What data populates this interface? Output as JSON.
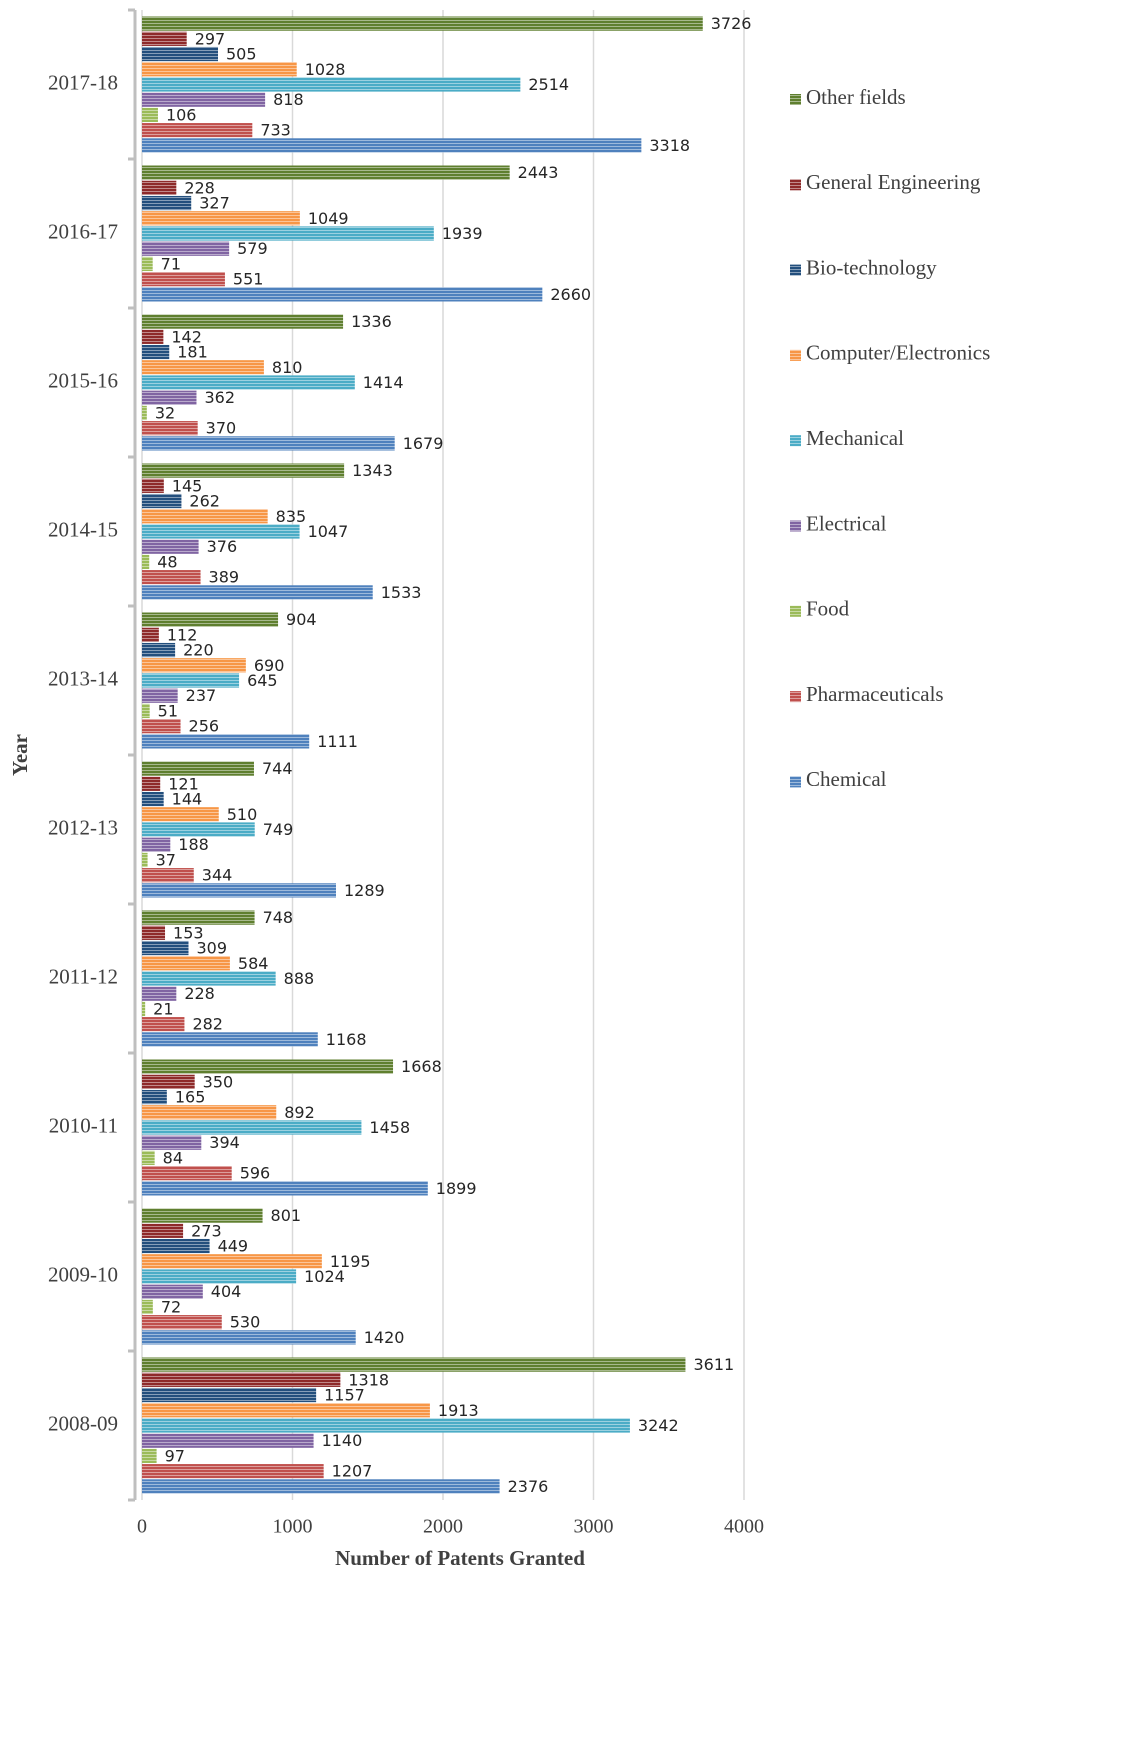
{
  "chart_data": {
    "type": "bar",
    "orientation": "horizontal",
    "x_label": "Number of Patents Granted",
    "y_label": "Year",
    "categories": [
      "2008-09",
      "2009-10",
      "2010-11",
      "2011-12",
      "2012-13",
      "2013-14",
      "2014-15",
      "2015-16",
      "2016-17",
      "2017-18"
    ],
    "series": [
      {
        "name": "Other fields",
        "color": "#5f7f2f",
        "values": [
          3611,
          801,
          1668,
          748,
          744,
          904,
          1343,
          1336,
          2443,
          3726
        ]
      },
      {
        "name": "General Engineering",
        "color": "#8e2a2a",
        "values": [
          1318,
          273,
          350,
          153,
          121,
          112,
          145,
          142,
          228,
          297
        ]
      },
      {
        "name": "Bio-technology",
        "color": "#234f7d",
        "values": [
          1157,
          449,
          165,
          309,
          144,
          220,
          262,
          181,
          327,
          505
        ]
      },
      {
        "name": "Computer/Electronics",
        "color": "#f79646",
        "values": [
          1913,
          1195,
          892,
          584,
          510,
          690,
          835,
          810,
          1049,
          1028
        ]
      },
      {
        "name": "Mechanical",
        "color": "#4bacc6",
        "values": [
          3242,
          1024,
          1458,
          888,
          749,
          645,
          1047,
          1414,
          1939,
          2514
        ]
      },
      {
        "name": "Electrical",
        "color": "#8064a2",
        "values": [
          1140,
          404,
          394,
          228,
          188,
          237,
          376,
          362,
          579,
          818
        ]
      },
      {
        "name": "Food",
        "color": "#9bbb59",
        "values": [
          97,
          72,
          84,
          21,
          37,
          51,
          48,
          32,
          71,
          106
        ]
      },
      {
        "name": "Pharmaceuticals",
        "color": "#c0504d",
        "values": [
          1207,
          530,
          596,
          282,
          344,
          256,
          389,
          370,
          551,
          733
        ]
      },
      {
        "name": "Chemical",
        "color": "#4f81bd",
        "values": [
          2376,
          1420,
          1899,
          1168,
          1289,
          1111,
          1533,
          1679,
          2660,
          3318
        ]
      }
    ],
    "xlim": [
      0,
      4000
    ],
    "xticks": [
      0,
      1000,
      2000,
      3000,
      4000
    ],
    "grid": true,
    "legend": "right"
  }
}
